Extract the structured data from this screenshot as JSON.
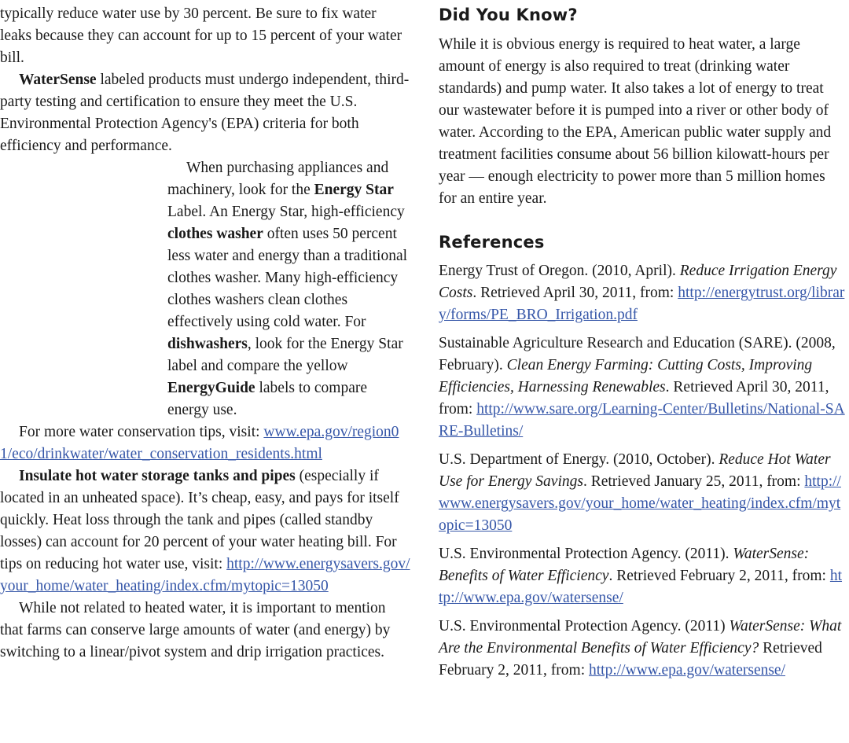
{
  "left": {
    "paragraphs": [
      {
        "style": "",
        "segments": [
          {
            "t": "typically reduce water use by 30 percent. Be sure to fix water leaks because they can account for up to 15 percent of your water bill.",
            "s": ""
          }
        ]
      },
      {
        "style": "ind",
        "segments": [
          {
            "t": "WaterSense",
            "s": "b"
          },
          {
            "t": " labeled products must undergo independent, third-party testing and certification to ensure they meet the U.S. Environmental Protection Agency's (EPA) criteria for both efficiency and performance.",
            "s": ""
          }
        ]
      },
      {
        "style": "ind wrap",
        "segments": [
          {
            "t": "When purchasing appliances and machinery, look for the ",
            "s": ""
          },
          {
            "t": "Energy Star",
            "s": "b"
          },
          {
            "t": " Label. An Energy Star, high-efficiency ",
            "s": ""
          },
          {
            "t": "clothes washer",
            "s": "b"
          },
          {
            "t": " often uses 50 percent less water and energy than a traditional clothes washer. Many high-efficiency clothes washers clean clothes effectively using cold water. For ",
            "s": ""
          },
          {
            "t": "dishwashers",
            "s": "b"
          },
          {
            "t": ", look for the Energy Star label and compare the yellow ",
            "s": ""
          },
          {
            "t": "EnergyGuide",
            "s": "b"
          },
          {
            "t": " labels to compare energy use.",
            "s": ""
          }
        ]
      },
      {
        "style": "ind",
        "segments": [
          {
            "t": "For more water conservation tips, visit: ",
            "s": ""
          },
          {
            "t": "www.epa.gov/region01/eco/drinkwater/water_conservation_residents.html",
            "s": "a"
          }
        ]
      },
      {
        "style": "ind",
        "segments": [
          {
            "t": "Insulate hot water storage tanks and pipes",
            "s": "b"
          },
          {
            "t": " (especially if located in an unheated space). It’s cheap, easy, and pays for itself quickly. Heat loss through the tank and pipes (called standby losses) can account for 20 percent of your water heating bill. For tips on reducing hot water use, visit: ",
            "s": ""
          },
          {
            "t": "http://www.energysavers.gov/your_home/water_heating/index.cfm/mytopic=13050",
            "s": "a"
          }
        ]
      },
      {
        "style": "ind",
        "segments": [
          {
            "t": "While not related to heated water, it is important to mention that farms can conserve large amounts of water (and energy) by switching to a linear/pivot system and drip irrigation practices.",
            "s": ""
          }
        ]
      }
    ]
  },
  "right": {
    "did_you_know_heading": "Did You Know?",
    "did_you_know_text": "While it is obvious energy is required to heat water, a large amount of energy is also required to treat (drinking water standards) and pump water. It also takes a lot of energy to treat our wastewater before it is pumped into a river or other body of water. According to the EPA, American public water supply and treatment facilities consume about 56 billion kilowatt-hours per year — enough electricity to power more than 5 million homes for an entire year.",
    "references_heading": "References",
    "references": [
      {
        "segments": [
          {
            "t": "Energy Trust of Oregon. (2010, April). ",
            "s": ""
          },
          {
            "t": "Reduce Irrigation Energy Costs",
            "s": "i"
          },
          {
            "t": ". Retrieved April 30, 2011, from: ",
            "s": ""
          },
          {
            "t": "http://energytrust.org/library/forms/PE_BRO_Irrigation.pdf",
            "s": "a"
          }
        ]
      },
      {
        "segments": [
          {
            "t": "Sustainable Agriculture Research and Education (SARE). (2008, February). ",
            "s": ""
          },
          {
            "t": "Clean Energy Farming: Cutting Costs, Improving Efficiencies, Harnessing Renewables",
            "s": "i"
          },
          {
            "t": ". Retrieved April 30, 2011, from: ",
            "s": ""
          },
          {
            "t": "http://www.sare.org/Learning-Center/Bulletins/National-SARE-Bulletins/",
            "s": "a"
          }
        ]
      },
      {
        "segments": [
          {
            "t": "U.S. Department of Energy. (2010, October). ",
            "s": ""
          },
          {
            "t": "Reduce Hot Water Use for Energy Savings",
            "s": "i"
          },
          {
            "t": ". Retrieved January 25, 2011, from: ",
            "s": ""
          },
          {
            "t": "http://www.energysavers.gov/your_home/water_heating/index.cfm/mytopic=13050",
            "s": "a"
          }
        ]
      },
      {
        "segments": [
          {
            "t": "U.S. Environmental Protection Agency. (2011). ",
            "s": ""
          },
          {
            "t": "WaterSense: Benefits of Water Efficiency",
            "s": "i"
          },
          {
            "t": ". Retrieved February 2, 2011, from: ",
            "s": ""
          },
          {
            "t": "http://www.epa.gov/watersense/",
            "s": "a"
          }
        ]
      },
      {
        "segments": [
          {
            "t": "U.S. Environmental Protection Agency. (2011) ",
            "s": ""
          },
          {
            "t": "WaterSense: What Are the Environmental Benefits of Water Efficiency?",
            "s": "i"
          },
          {
            "t": " Retrieved February 2, 2011, from: ",
            "s": ""
          },
          {
            "t": "http://www.epa.gov/watersense/",
            "s": "a"
          }
        ]
      }
    ]
  },
  "colors": {
    "link": "#3556a8",
    "text": "#1a1a1a"
  }
}
